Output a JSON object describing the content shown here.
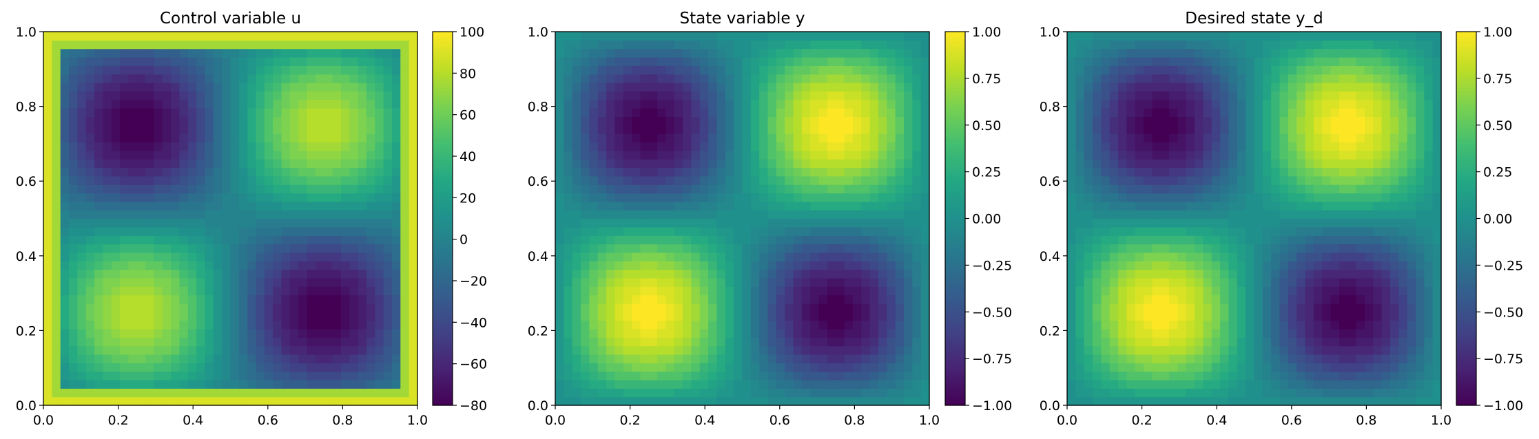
{
  "chart_data": [
    {
      "type": "heatmap",
      "title": "Control variable u",
      "xlabel": "",
      "ylabel": "",
      "xlim": [
        0,
        1
      ],
      "ylim": [
        0,
        1
      ],
      "x_ticks": [
        "0.0",
        "0.2",
        "0.4",
        "0.6",
        "0.8",
        "1.0"
      ],
      "y_ticks": [
        "0.0",
        "0.2",
        "0.4",
        "0.6",
        "0.8",
        "1.0"
      ],
      "colorbar": {
        "min": -80,
        "max": 100,
        "ticks": [
          "−80",
          "−60",
          "−40",
          "−20",
          "0",
          "20",
          "40",
          "60",
          "80",
          "100"
        ],
        "tick_values": [
          -80,
          -60,
          -40,
          -20,
          0,
          20,
          40,
          60,
          80,
          100
        ]
      },
      "field": {
        "kind": "sine_pattern",
        "center_value": 0,
        "amplitude": 82,
        "boundary_value": 100,
        "extremes": [
          {
            "x": 0.25,
            "y": 0.75,
            "value": -82
          },
          {
            "x": 0.75,
            "y": 0.75,
            "value": 82
          },
          {
            "x": 0.25,
            "y": 0.25,
            "value": 82
          },
          {
            "x": 0.75,
            "y": 0.25,
            "value": -82
          }
        ]
      },
      "colormap": "viridis",
      "grid": false
    },
    {
      "type": "heatmap",
      "title": "State variable y",
      "xlabel": "",
      "ylabel": "",
      "xlim": [
        0,
        1
      ],
      "ylim": [
        0,
        1
      ],
      "x_ticks": [
        "0.0",
        "0.2",
        "0.4",
        "0.6",
        "0.8",
        "1.0"
      ],
      "y_ticks": [
        "0.0",
        "0.2",
        "0.4",
        "0.6",
        "0.8",
        "1.0"
      ],
      "colorbar": {
        "min": -1,
        "max": 1,
        "ticks": [
          "−1.00",
          "−0.75",
          "−0.50",
          "−0.25",
          "0.00",
          "0.25",
          "0.50",
          "0.75",
          "1.00"
        ],
        "tick_values": [
          -1,
          -0.75,
          -0.5,
          -0.25,
          0,
          0.25,
          0.5,
          0.75,
          1
        ]
      },
      "field": {
        "kind": "sine_pattern",
        "center_value": 0,
        "amplitude": 1,
        "extremes": [
          {
            "x": 0.25,
            "y": 0.75,
            "value": -1
          },
          {
            "x": 0.75,
            "y": 0.75,
            "value": 1
          },
          {
            "x": 0.25,
            "y": 0.25,
            "value": 1
          },
          {
            "x": 0.75,
            "y": 0.25,
            "value": -1
          }
        ]
      },
      "colormap": "viridis",
      "grid": false
    },
    {
      "type": "heatmap",
      "title": "Desired state y_d",
      "xlabel": "",
      "ylabel": "",
      "xlim": [
        0,
        1
      ],
      "ylim": [
        0,
        1
      ],
      "x_ticks": [
        "0.0",
        "0.2",
        "0.4",
        "0.6",
        "0.8",
        "1.0"
      ],
      "y_ticks": [
        "0.0",
        "0.2",
        "0.4",
        "0.6",
        "0.8",
        "1.0"
      ],
      "colorbar": {
        "min": -1,
        "max": 1,
        "ticks": [
          "−1.00",
          "−0.75",
          "−0.50",
          "−0.25",
          "0.00",
          "0.25",
          "0.50",
          "0.75",
          "1.00"
        ],
        "tick_values": [
          -1,
          -0.75,
          -0.5,
          -0.25,
          0,
          0.25,
          0.5,
          0.75,
          1
        ]
      },
      "field": {
        "kind": "sine_pattern",
        "center_value": 0,
        "amplitude": 1,
        "extremes": [
          {
            "x": 0.25,
            "y": 0.75,
            "value": -1
          },
          {
            "x": 0.75,
            "y": 0.75,
            "value": 1
          },
          {
            "x": 0.25,
            "y": 0.25,
            "value": 1
          },
          {
            "x": 0.75,
            "y": 0.25,
            "value": -1
          }
        ]
      },
      "colormap": "viridis",
      "grid": false
    }
  ]
}
